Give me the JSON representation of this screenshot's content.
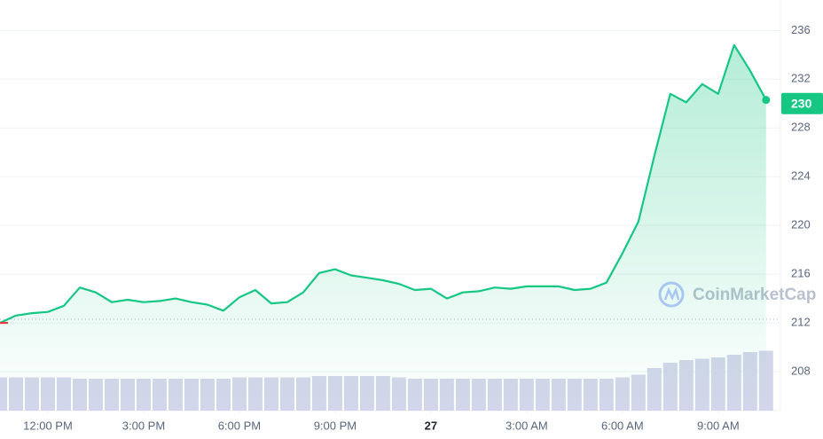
{
  "chart_data": {
    "type": "line",
    "series": [
      {
        "name": "Price",
        "color": "#16c784",
        "values": [
          212.0,
          212.6,
          212.8,
          212.9,
          213.4,
          214.9,
          214.5,
          213.7,
          213.9,
          213.7,
          213.8,
          214.0,
          213.7,
          213.5,
          213.0,
          214.1,
          214.7,
          213.6,
          213.7,
          214.5,
          216.1,
          216.4,
          215.9,
          215.7,
          215.5,
          215.2,
          214.7,
          214.8,
          214.0,
          214.5,
          214.6,
          214.9,
          214.8,
          215.0,
          215.0,
          215.0,
          214.7,
          214.8,
          215.3,
          217.7,
          220.3,
          225.7,
          230.8,
          230.1,
          231.6,
          230.8,
          234.8,
          232.7,
          230.3
        ]
      }
    ],
    "down_color": "#ea3943",
    "baseline": 212.3,
    "xticks": [
      {
        "value": 3,
        "label": "12:00 PM"
      },
      {
        "value": 9,
        "label": "3:00 PM"
      },
      {
        "value": 15,
        "label": "6:00 PM"
      },
      {
        "value": 21,
        "label": "9:00 PM"
      },
      {
        "value": 27,
        "label": "27"
      },
      {
        "value": 33,
        "label": "3:00 AM"
      },
      {
        "value": 39,
        "label": "6:00 AM"
      },
      {
        "value": 45,
        "label": "9:00 AM"
      }
    ],
    "xlim": [
      0,
      48.9
    ],
    "ylim": [
      204.8,
      238.5
    ],
    "yticks": [
      208,
      212,
      216,
      220,
      224,
      228,
      232,
      236
    ],
    "grid": true,
    "current_price": 230,
    "volume": {
      "color": "#d3d6ea",
      "ylim": [
        0,
        100
      ],
      "values": [
        25,
        25,
        25,
        25,
        25,
        24,
        24,
        24,
        24,
        24,
        24,
        24,
        24,
        24,
        24,
        25,
        25,
        25,
        25,
        25,
        26,
        26,
        26,
        26,
        26,
        25,
        24,
        24,
        24,
        24,
        24,
        24,
        24,
        24,
        24,
        24,
        24,
        24,
        24,
        25,
        27,
        32,
        36,
        38,
        39,
        40,
        42,
        44,
        45
      ]
    },
    "watermark": "CoinMarketCap"
  }
}
